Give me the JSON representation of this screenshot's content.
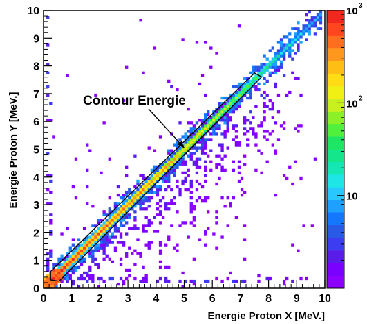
{
  "chart_data": {
    "type": "heatmap",
    "xlabel": "Energie Proton X [MeV.]",
    "ylabel": "Energie Proton Y [MeV.]",
    "xlim": [
      0,
      10
    ],
    "ylim": [
      0,
      10
    ],
    "x_ticks": [
      "0",
      "1",
      "2",
      "3",
      "4",
      "5",
      "6",
      "7",
      "8",
      "9",
      "10"
    ],
    "y_ticks": [
      "0",
      "1",
      "2",
      "3",
      "4",
      "5",
      "6",
      "7",
      "8",
      "9",
      "10"
    ],
    "z_scale": "log",
    "z_range": [
      1,
      1000
    ],
    "colorbar": {
      "labels": [
        {
          "value": 10,
          "text": "10",
          "exp": ""
        },
        {
          "value": 100,
          "text": "10",
          "exp": "2"
        },
        {
          "value": 1000,
          "text": "10",
          "exp": "3"
        }
      ],
      "colors": [
        "#8c00ff",
        "#7a00ff",
        "#5a1ce8",
        "#3c3cf0",
        "#285ae6",
        "#1478ff",
        "#1ea0ff",
        "#28c8ff",
        "#1ee6e6",
        "#14e6b4",
        "#14e68c",
        "#1ee664",
        "#50f03c",
        "#8cf028",
        "#c8f01e",
        "#f0f014",
        "#ffdc14",
        "#ffbe14",
        "#ff961e",
        "#ff6e1e",
        "#ff461e",
        "#f0281e"
      ]
    },
    "annotation": {
      "text": "Contour Energie",
      "arrow_to": [
        5.0,
        5.05
      ]
    },
    "contour": {
      "polygon": [
        [
          0.25,
          0.3
        ],
        [
          0.55,
          0.25
        ],
        [
          7.75,
          7.6
        ],
        [
          7.5,
          7.75
        ],
        [
          0.25,
          0.6
        ]
      ]
    },
    "density_model": {
      "ridge": "y = x",
      "ridge_range": [
        0.3,
        9.9
      ],
      "diagonal_band_counts": [
        [
          0.5,
          800
        ],
        [
          2.0,
          500
        ],
        [
          4.0,
          300
        ],
        [
          6.0,
          120
        ],
        [
          7.5,
          40
        ],
        [
          9.5,
          10
        ]
      ],
      "scatter_region": "below diagonal, spreading to x≈9 at low y",
      "vertical_band_x": 0.25,
      "horizontal_band_y": 0.3
    }
  }
}
